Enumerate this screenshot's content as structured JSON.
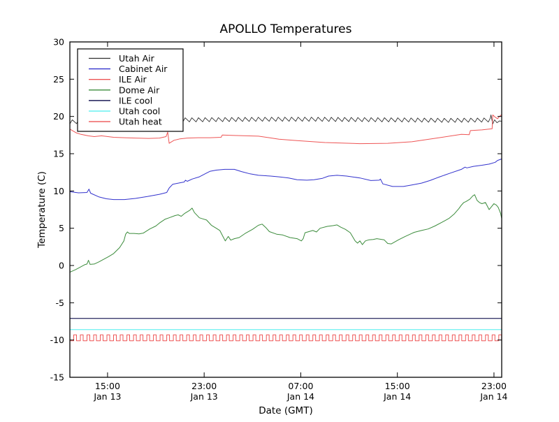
{
  "figure": {
    "title": "APOLLO Temperatures",
    "xlabel": "Date (GMT)",
    "ylabel": "Temperature (C)"
  },
  "chart_data": {
    "type": "line",
    "title": "APOLLO Temperatures",
    "xlabel": "Date (GMT)",
    "ylabel": "Temperature (C)",
    "ylim": [
      -15,
      30
    ],
    "y_ticks": [
      30,
      25,
      20,
      15,
      10,
      5,
      0,
      -5,
      -10,
      -15
    ],
    "x_axis_unit": "hours since Jan 13 00:00 GMT",
    "xlim_hours": [
      11.88,
      47.64
    ],
    "x_ticks": [
      {
        "hours": 15,
        "time": "15:00",
        "date": "Jan 13"
      },
      {
        "hours": 23,
        "time": "23:00",
        "date": "Jan 13"
      },
      {
        "hours": 31,
        "time": "07:00",
        "date": "Jan 14"
      },
      {
        "hours": 39,
        "time": "15:00",
        "date": "Jan 14"
      },
      {
        "hours": 47,
        "time": "23:00",
        "date": "Jan 14"
      }
    ],
    "grid": false,
    "legend_position": "upper left",
    "series": [
      {
        "name": "Utah Air",
        "color": "#2f2f2f",
        "width": 0.9,
        "style": "sawtooth",
        "period_hours": 0.55,
        "rise_fraction": 0.36,
        "amplitude_up": 0.3,
        "amplitude_down": 0.25,
        "t_start": 11.88,
        "t_end": 46.7,
        "baseline": [
          [
            11.88,
            19.25
          ],
          [
            14,
            19.4
          ],
          [
            20,
            19.5
          ],
          [
            24,
            19.55
          ],
          [
            28,
            19.6
          ],
          [
            32,
            19.6
          ],
          [
            36,
            19.55
          ],
          [
            40,
            19.5
          ],
          [
            43,
            19.45
          ],
          [
            46.7,
            19.5
          ]
        ],
        "tail_points": [
          [
            46.75,
            20.2
          ],
          [
            46.9,
            19.0
          ],
          [
            47.05,
            19.55
          ],
          [
            47.25,
            19.15
          ],
          [
            47.45,
            19.4
          ],
          [
            47.64,
            19.35
          ]
        ]
      },
      {
        "name": "Cabinet Air",
        "color": "#3232cd",
        "width": 1,
        "style": "line",
        "points": [
          [
            11.88,
            9.9
          ],
          [
            12.6,
            9.75
          ],
          [
            13.3,
            9.8
          ],
          [
            13.46,
            10.25
          ],
          [
            13.6,
            9.7
          ],
          [
            14.3,
            9.2
          ],
          [
            14.9,
            8.95
          ],
          [
            15.5,
            8.85
          ],
          [
            16.4,
            8.85
          ],
          [
            17.3,
            9.0
          ],
          [
            18.3,
            9.25
          ],
          [
            19.3,
            9.55
          ],
          [
            19.9,
            9.8
          ],
          [
            20.1,
            10.4
          ],
          [
            20.4,
            10.9
          ],
          [
            21.0,
            11.1
          ],
          [
            21.35,
            11.2
          ],
          [
            21.45,
            11.45
          ],
          [
            21.6,
            11.3
          ],
          [
            22.0,
            11.6
          ],
          [
            22.6,
            11.9
          ],
          [
            23.2,
            12.4
          ],
          [
            23.5,
            12.65
          ],
          [
            24.0,
            12.8
          ],
          [
            24.7,
            12.9
          ],
          [
            25.5,
            12.9
          ],
          [
            26.1,
            12.6
          ],
          [
            26.8,
            12.3
          ],
          [
            27.5,
            12.1
          ],
          [
            28.5,
            12.0
          ],
          [
            29.2,
            11.9
          ],
          [
            30.0,
            11.75
          ],
          [
            30.7,
            11.5
          ],
          [
            31.5,
            11.45
          ],
          [
            32.1,
            11.5
          ],
          [
            32.8,
            11.7
          ],
          [
            33.3,
            12.0
          ],
          [
            34.0,
            12.1
          ],
          [
            34.8,
            12.0
          ],
          [
            35.9,
            11.75
          ],
          [
            36.8,
            11.4
          ],
          [
            37.5,
            11.45
          ],
          [
            37.6,
            11.6
          ],
          [
            37.8,
            10.95
          ],
          [
            38.6,
            10.6
          ],
          [
            39.5,
            10.6
          ],
          [
            40.2,
            10.8
          ],
          [
            41.0,
            11.05
          ],
          [
            41.7,
            11.4
          ],
          [
            42.5,
            11.9
          ],
          [
            43.4,
            12.4
          ],
          [
            44.3,
            12.9
          ],
          [
            44.6,
            13.2
          ],
          [
            44.75,
            13.1
          ],
          [
            45.3,
            13.3
          ],
          [
            46.0,
            13.45
          ],
          [
            46.6,
            13.6
          ],
          [
            47.1,
            13.85
          ],
          [
            47.3,
            14.1
          ],
          [
            47.64,
            14.3
          ]
        ]
      },
      {
        "name": "ILE Air",
        "color": "#ee5555",
        "width": 1,
        "style": "line",
        "points": [
          [
            11.88,
            18.3
          ],
          [
            12.4,
            17.8
          ],
          [
            12.8,
            17.6
          ],
          [
            13.4,
            17.4
          ],
          [
            13.9,
            17.3
          ],
          [
            14.5,
            17.4
          ],
          [
            15.5,
            17.2
          ],
          [
            16.4,
            17.15
          ],
          [
            17.3,
            17.1
          ],
          [
            18.4,
            17.05
          ],
          [
            19.3,
            17.1
          ],
          [
            19.85,
            17.3
          ],
          [
            19.98,
            17.9
          ],
          [
            20.1,
            16.4
          ],
          [
            20.5,
            16.8
          ],
          [
            21.0,
            17.0
          ],
          [
            21.6,
            17.1
          ],
          [
            22.5,
            17.15
          ],
          [
            23.5,
            17.15
          ],
          [
            24.4,
            17.2
          ],
          [
            24.5,
            17.5
          ],
          [
            25.5,
            17.45
          ],
          [
            26.5,
            17.4
          ],
          [
            27.5,
            17.35
          ],
          [
            28.4,
            17.15
          ],
          [
            29.2,
            16.95
          ],
          [
            30.7,
            16.75
          ],
          [
            33.0,
            16.5
          ],
          [
            35.9,
            16.35
          ],
          [
            38.2,
            16.4
          ],
          [
            40.2,
            16.6
          ],
          [
            42.7,
            17.2
          ],
          [
            44.3,
            17.6
          ],
          [
            44.95,
            17.55
          ],
          [
            45.05,
            18.1
          ],
          [
            46.0,
            18.2
          ],
          [
            46.6,
            18.3
          ],
          [
            46.85,
            18.35
          ],
          [
            46.9,
            20.2
          ],
          [
            47.1,
            19.9
          ],
          [
            47.3,
            19.7
          ],
          [
            47.45,
            20.0
          ],
          [
            47.64,
            20.25
          ]
        ]
      },
      {
        "name": "Dome Air",
        "color": "#3c8c3c",
        "width": 1,
        "style": "line",
        "points": [
          [
            11.88,
            -0.9
          ],
          [
            12.35,
            -0.55
          ],
          [
            12.65,
            -0.3
          ],
          [
            13.1,
            0.1
          ],
          [
            13.3,
            0.2
          ],
          [
            13.42,
            0.7
          ],
          [
            13.55,
            0.15
          ],
          [
            13.9,
            0.2
          ],
          [
            14.3,
            0.5
          ],
          [
            14.7,
            0.85
          ],
          [
            15.1,
            1.2
          ],
          [
            15.5,
            1.6
          ],
          [
            16.0,
            2.4
          ],
          [
            16.35,
            3.3
          ],
          [
            16.5,
            4.2
          ],
          [
            16.65,
            4.5
          ],
          [
            16.8,
            4.3
          ],
          [
            17.2,
            4.3
          ],
          [
            17.6,
            4.25
          ],
          [
            17.97,
            4.35
          ],
          [
            18.5,
            4.9
          ],
          [
            19.0,
            5.3
          ],
          [
            19.3,
            5.7
          ],
          [
            19.75,
            6.2
          ],
          [
            20.1,
            6.4
          ],
          [
            20.6,
            6.7
          ],
          [
            20.85,
            6.8
          ],
          [
            21.1,
            6.6
          ],
          [
            21.4,
            7.0
          ],
          [
            21.8,
            7.4
          ],
          [
            22.0,
            7.7
          ],
          [
            22.2,
            7.1
          ],
          [
            22.6,
            6.4
          ],
          [
            22.9,
            6.25
          ],
          [
            23.2,
            6.1
          ],
          [
            23.6,
            5.4
          ],
          [
            24.0,
            5.0
          ],
          [
            24.3,
            4.7
          ],
          [
            24.55,
            3.9
          ],
          [
            24.75,
            3.3
          ],
          [
            25.0,
            3.9
          ],
          [
            25.2,
            3.4
          ],
          [
            25.5,
            3.6
          ],
          [
            25.9,
            3.75
          ],
          [
            26.4,
            4.3
          ],
          [
            27.0,
            4.85
          ],
          [
            27.5,
            5.4
          ],
          [
            27.8,
            5.55
          ],
          [
            28.1,
            5.1
          ],
          [
            28.4,
            4.55
          ],
          [
            29.0,
            4.2
          ],
          [
            29.5,
            4.1
          ],
          [
            30.1,
            3.75
          ],
          [
            30.7,
            3.6
          ],
          [
            31.05,
            3.3
          ],
          [
            31.2,
            3.6
          ],
          [
            31.35,
            4.4
          ],
          [
            32.0,
            4.7
          ],
          [
            32.3,
            4.5
          ],
          [
            32.6,
            5.0
          ],
          [
            33.2,
            5.25
          ],
          [
            33.7,
            5.35
          ],
          [
            34.0,
            5.45
          ],
          [
            34.3,
            5.15
          ],
          [
            34.7,
            4.85
          ],
          [
            35.1,
            4.4
          ],
          [
            35.5,
            3.3
          ],
          [
            35.7,
            3.0
          ],
          [
            35.9,
            3.3
          ],
          [
            36.1,
            2.8
          ],
          [
            36.35,
            3.3
          ],
          [
            36.65,
            3.45
          ],
          [
            37.0,
            3.5
          ],
          [
            37.3,
            3.6
          ],
          [
            37.9,
            3.45
          ],
          [
            38.2,
            2.95
          ],
          [
            38.5,
            2.9
          ],
          [
            39.1,
            3.45
          ],
          [
            39.65,
            3.9
          ],
          [
            40.2,
            4.3
          ],
          [
            40.4,
            4.45
          ],
          [
            41.0,
            4.7
          ],
          [
            41.55,
            4.9
          ],
          [
            42.1,
            5.3
          ],
          [
            42.7,
            5.8
          ],
          [
            43.3,
            6.35
          ],
          [
            43.7,
            6.9
          ],
          [
            44.1,
            7.65
          ],
          [
            44.3,
            8.1
          ],
          [
            44.5,
            8.45
          ],
          [
            44.7,
            8.6
          ],
          [
            44.85,
            8.75
          ],
          [
            45.0,
            8.9
          ],
          [
            45.25,
            9.35
          ],
          [
            45.4,
            9.5
          ],
          [
            45.6,
            8.75
          ],
          [
            45.8,
            8.45
          ],
          [
            46.0,
            8.3
          ],
          [
            46.3,
            8.45
          ],
          [
            46.6,
            7.5
          ],
          [
            46.75,
            7.8
          ],
          [
            47.0,
            8.3
          ],
          [
            47.2,
            8.1
          ],
          [
            47.35,
            7.8
          ],
          [
            47.55,
            7.0
          ],
          [
            47.64,
            6.3
          ]
        ]
      },
      {
        "name": "ILE cool",
        "color": "#3c3c6e",
        "width": 1.3,
        "style": "line",
        "points": [
          [
            11.88,
            -7.1
          ],
          [
            47.64,
            -7.1
          ]
        ]
      },
      {
        "name": "Utah cool",
        "color": "#7df2f2",
        "width": 1.3,
        "style": "line",
        "points": [
          [
            11.88,
            -8.6
          ],
          [
            47.64,
            -8.6
          ]
        ]
      },
      {
        "name": "Utah heat",
        "color": "#ee5555",
        "width": 1,
        "style": "pulse",
        "low": -10.1,
        "high": -9.3,
        "period_hours": 0.55,
        "high_fraction": 0.42,
        "t_start": 11.88,
        "t_end": 47.64
      }
    ]
  }
}
